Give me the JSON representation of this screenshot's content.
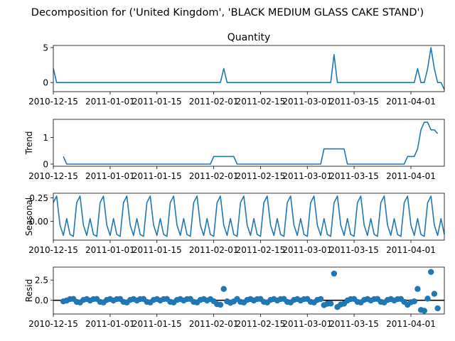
{
  "figure": {
    "suptitle": "Decomposition for ('United Kingdom', 'BLACK MEDIUM GLASS CAKE STAND')"
  },
  "chart_data": [
    {
      "type": "line",
      "panel": "observed",
      "title": "Quantity",
      "ylabel": "",
      "x_range": [
        "2010-12-15",
        "2011-04-11"
      ],
      "ylim": [
        -1.3,
        5.3
      ],
      "yticks": [
        0,
        5
      ],
      "xticks": [
        "2010-12-15",
        "2011-01-01",
        "2011-01-15",
        "2011-02-01",
        "2011-02-15",
        "2011-03-01",
        "2011-03-15",
        "2011-04-01"
      ],
      "color": "#1f77b4",
      "series": [
        {
          "points": [
            [
              "2010-12-15",
              2
            ],
            [
              "2010-12-16",
              0
            ],
            [
              "2011-02-03",
              0
            ],
            [
              "2011-02-04",
              2
            ],
            [
              "2011-02-05",
              0
            ],
            [
              "2011-03-08",
              0
            ],
            [
              "2011-03-09",
              4
            ],
            [
              "2011-03-10",
              0
            ],
            [
              "2011-04-02",
              0
            ],
            [
              "2011-04-03",
              2
            ],
            [
              "2011-04-04",
              0
            ],
            [
              "2011-04-05",
              0
            ],
            [
              "2011-04-06",
              2
            ],
            [
              "2011-04-07",
              5
            ],
            [
              "2011-04-08",
              2
            ],
            [
              "2011-04-09",
              0
            ],
            [
              "2011-04-10",
              0
            ],
            [
              "2011-04-11",
              -1
            ]
          ]
        }
      ]
    },
    {
      "type": "line",
      "panel": "trend",
      "title": "",
      "ylabel": "Trend",
      "x_range": [
        "2010-12-15",
        "2011-04-11"
      ],
      "ylim": [
        -0.08,
        1.68
      ],
      "yticks": [
        0,
        1
      ],
      "xticks": [
        "2010-12-15",
        "2011-01-01",
        "2011-01-15",
        "2011-02-01",
        "2011-02-15",
        "2011-03-01",
        "2011-03-15",
        "2011-04-01"
      ],
      "color": "#1f77b4",
      "series": [
        {
          "points": [
            [
              "2010-12-18",
              0.286
            ],
            [
              "2010-12-19",
              0
            ],
            [
              "2011-01-31",
              0
            ],
            [
              "2011-02-01",
              0.286
            ],
            [
              "2011-02-07",
              0.286
            ],
            [
              "2011-02-08",
              0
            ],
            [
              "2011-03-05",
              0
            ],
            [
              "2011-03-06",
              0.571
            ],
            [
              "2011-03-12",
              0.571
            ],
            [
              "2011-03-13",
              0
            ],
            [
              "2011-03-30",
              0
            ],
            [
              "2011-03-31",
              0.286
            ],
            [
              "2011-04-02",
              0.286
            ],
            [
              "2011-04-03",
              0.571
            ],
            [
              "2011-04-04",
              1.286
            ],
            [
              "2011-04-05",
              1.571
            ],
            [
              "2011-04-06",
              1.571
            ],
            [
              "2011-04-07",
              1.286
            ],
            [
              "2011-04-08",
              1.286
            ],
            [
              "2011-04-09",
              1.143
            ]
          ]
        }
      ]
    },
    {
      "type": "line",
      "panel": "seasonal",
      "title": "",
      "ylabel": "Seasonal",
      "x_range": [
        "2010-12-15",
        "2011-04-11"
      ],
      "ylim": [
        -0.2,
        0.3
      ],
      "yticks": [
        -0.0,
        0.25
      ],
      "ytick_labels": [
        "0.00",
        "0.25"
      ],
      "xticks": [
        "2010-12-15",
        "2011-01-01",
        "2011-01-15",
        "2011-02-01",
        "2011-02-15",
        "2011-03-01",
        "2011-03-15",
        "2011-04-01"
      ],
      "color": "#1f77b4",
      "weekly_pattern": [
        0.2,
        0.27,
        -0.04,
        -0.15,
        0.03,
        -0.14,
        -0.16
      ],
      "pattern_start": "2010-12-15",
      "pattern_end": "2011-04-11"
    },
    {
      "type": "scatter",
      "panel": "resid",
      "title": "",
      "ylabel": "Resid",
      "x_range": [
        "2010-12-15",
        "2011-04-11"
      ],
      "ylim": [
        -1.7,
        4.1
      ],
      "yticks": [
        0,
        2.5
      ],
      "ytick_labels": [
        "0.0",
        "2.5"
      ],
      "xticks": [
        "2010-12-15",
        "2011-01-01",
        "2011-01-15",
        "2011-02-01",
        "2011-02-15",
        "2011-03-01",
        "2011-03-15",
        "2011-04-01"
      ],
      "color": "#1f77b4",
      "zero_line": true,
      "residual_range": [
        "2010-12-18",
        "2011-04-09"
      ],
      "outliers": [
        [
          "2011-02-04",
          1.4
        ],
        [
          "2011-03-09",
          3.3
        ],
        [
          "2011-04-03",
          1.4
        ],
        [
          "2011-04-04",
          -1.2
        ],
        [
          "2011-04-05",
          -1.3
        ],
        [
          "2011-04-06",
          0.2
        ],
        [
          "2011-04-07",
          3.5
        ],
        [
          "2011-04-08",
          0.8
        ],
        [
          "2011-04-09",
          -1.0
        ]
      ]
    }
  ]
}
